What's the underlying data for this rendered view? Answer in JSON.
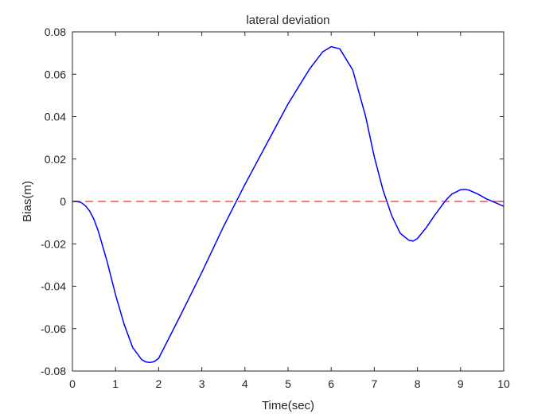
{
  "chart_data": {
    "type": "line",
    "title": "lateral deviation",
    "xlabel": "Time(sec)",
    "ylabel": "Bias(m)",
    "xlim": [
      0,
      10
    ],
    "ylim": [
      -0.08,
      0.08
    ],
    "xticks": [
      0,
      1,
      2,
      3,
      4,
      5,
      6,
      7,
      8,
      9,
      10
    ],
    "xtick_labels": [
      "0",
      "1",
      "2",
      "3",
      "4",
      "5",
      "6",
      "7",
      "8",
      "9",
      "10"
    ],
    "yticks": [
      -0.08,
      -0.06,
      -0.04,
      -0.02,
      0,
      0.02,
      0.04,
      0.06,
      0.08
    ],
    "ytick_labels": [
      "-0.08",
      "-0.06",
      "-0.04",
      "-0.02",
      "0",
      "0.02",
      "0.04",
      "0.06",
      "0.08"
    ],
    "grid": false,
    "legend": "none",
    "series": [
      {
        "color": "#0000ff",
        "style": "solid",
        "x": [
          0,
          0.1,
          0.2,
          0.3,
          0.4,
          0.5,
          0.6,
          0.8,
          1.0,
          1.2,
          1.4,
          1.6,
          1.7,
          1.8,
          1.9,
          2.0,
          2.2,
          2.5,
          3.0,
          3.5,
          3.85,
          4.0,
          4.5,
          5.0,
          5.5,
          5.8,
          6.0,
          6.2,
          6.5,
          6.8,
          7.0,
          7.2,
          7.4,
          7.6,
          7.8,
          7.9,
          8.0,
          8.2,
          8.4,
          8.6,
          8.7,
          8.8,
          9.0,
          9.1,
          9.2,
          9.4,
          9.6,
          9.8,
          10.0
        ],
        "y": [
          0,
          0,
          -0.0005,
          -0.002,
          -0.0045,
          -0.0085,
          -0.014,
          -0.028,
          -0.044,
          -0.058,
          -0.069,
          -0.0745,
          -0.0757,
          -0.076,
          -0.0755,
          -0.074,
          -0.066,
          -0.054,
          -0.0335,
          -0.012,
          0.002,
          0.008,
          0.027,
          0.046,
          0.0625,
          0.0705,
          0.073,
          0.072,
          0.062,
          0.04,
          0.021,
          0.0055,
          -0.0065,
          -0.015,
          -0.0183,
          -0.0187,
          -0.0175,
          -0.0125,
          -0.0065,
          -0.001,
          0.0015,
          0.0035,
          0.0055,
          0.0057,
          0.0053,
          0.0035,
          0.0012,
          -0.0005,
          -0.0023
        ]
      },
      {
        "color": "#ff4d4d",
        "style": "dashed",
        "x": [
          0,
          10
        ],
        "y": [
          0,
          0
        ]
      }
    ]
  }
}
